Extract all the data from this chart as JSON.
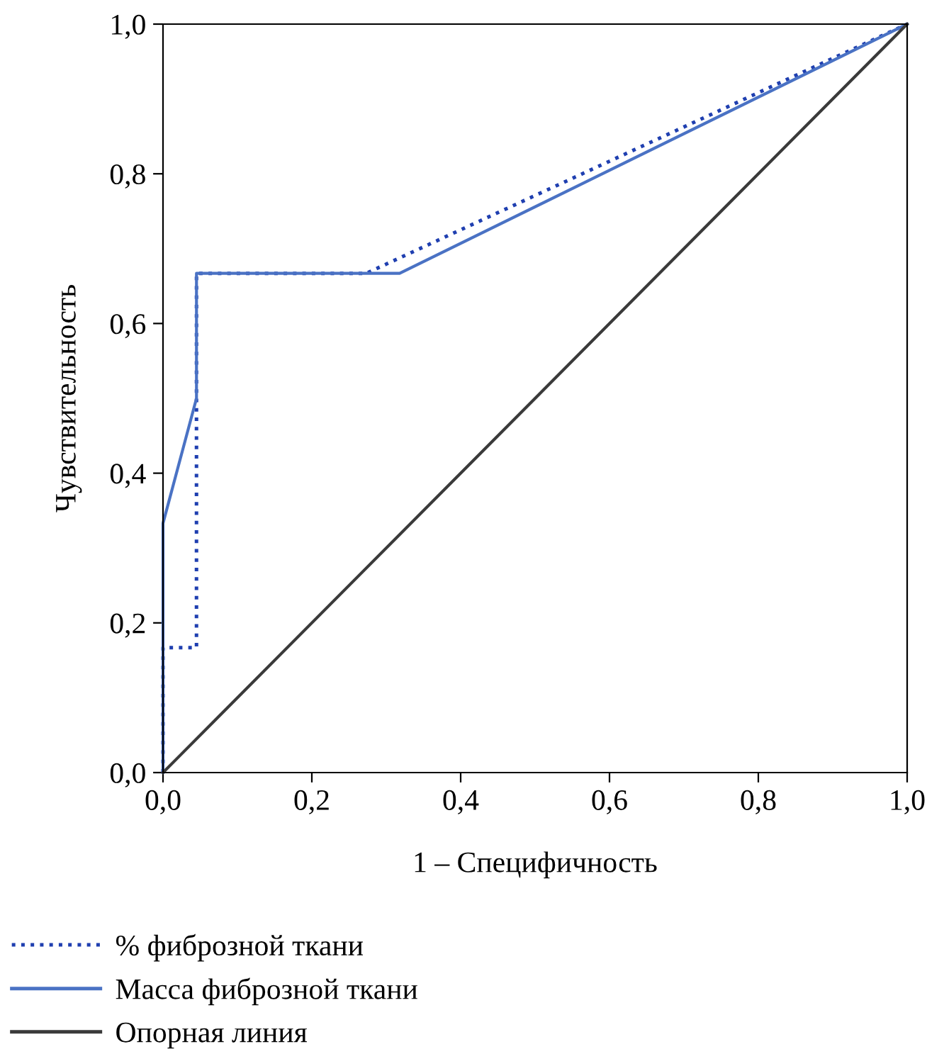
{
  "chart_data": {
    "type": "line",
    "xlabel": "1 – Специфичность",
    "ylabel": "Чувствительность",
    "series": [
      {
        "name": "% фиброзной ткани",
        "color": "#1f3fb0",
        "line_style": "dotted",
        "x": [
          0,
          0,
          0.045,
          0.045,
          0.273,
          1
        ],
        "values": [
          0,
          0.167,
          0.167,
          0.667,
          0.667,
          1
        ]
      },
      {
        "name": "Масса фиброзной ткани",
        "color": "#4a72c4",
        "line_style": "solid",
        "x": [
          0,
          0,
          0.045,
          0.045,
          0.318,
          1
        ],
        "values": [
          0,
          0.333,
          0.5,
          0.667,
          0.667,
          1
        ]
      },
      {
        "name": "Опорная линия",
        "color": "#3a3a3a",
        "line_style": "solid",
        "x": [
          0,
          1
        ],
        "values": [
          0,
          1
        ]
      }
    ],
    "xlim": [
      0,
      1
    ],
    "ylim": [
      0,
      1
    ],
    "xticks": [
      {
        "value": 0,
        "label": "0,0"
      },
      {
        "value": 0.2,
        "label": "0,2"
      },
      {
        "value": 0.4,
        "label": "0,4"
      },
      {
        "value": 0.6,
        "label": "0,6"
      },
      {
        "value": 0.8,
        "label": "0,8"
      },
      {
        "value": 1,
        "label": "1,0"
      }
    ],
    "yticks": [
      {
        "value": 0,
        "label": "0,0"
      },
      {
        "value": 0.2,
        "label": "0,2"
      },
      {
        "value": 0.4,
        "label": "0,4"
      },
      {
        "value": 0.6,
        "label": "0,6"
      },
      {
        "value": 0.8,
        "label": "0,8"
      },
      {
        "value": 1,
        "label": "1,0"
      }
    ],
    "grid": false,
    "legend": "bottom left",
    "marker": "none"
  }
}
